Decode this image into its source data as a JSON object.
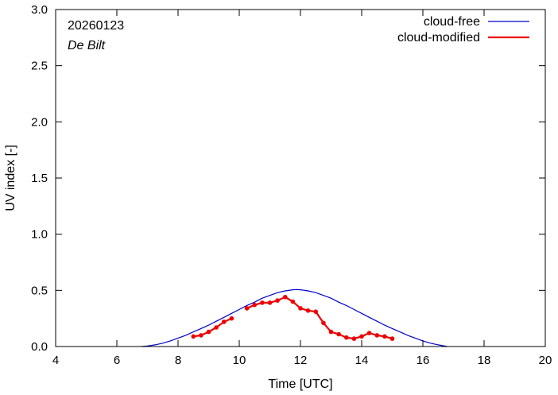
{
  "chart_data": {
    "type": "line",
    "title": "",
    "xlabel": "Time  [UTC]",
    "ylabel": "UV index  [-]",
    "xlim": [
      4,
      20
    ],
    "ylim": [
      0,
      3.0
    ],
    "x_ticks": [
      4,
      6,
      8,
      10,
      12,
      14,
      16,
      18,
      20
    ],
    "y_ticks": [
      0.0,
      0.5,
      1.0,
      1.5,
      2.0,
      2.5,
      3.0
    ],
    "x_tick_labels": [
      "4",
      "6",
      "8",
      "10",
      "12",
      "14",
      "16",
      "18",
      "20"
    ],
    "y_tick_labels": [
      "0.0",
      "0.5",
      "1.0",
      "1.5",
      "2.0",
      "2.5",
      "3.0"
    ],
    "grid": false,
    "legend_position": "top-right",
    "annotations": {
      "date": "20260123",
      "location": "De Bilt"
    },
    "series": [
      {
        "name": "cloud-free",
        "color": "#0000cc",
        "style": "line",
        "x": [
          6.8,
          7.0,
          7.25,
          7.5,
          7.75,
          8.0,
          8.25,
          8.5,
          8.75,
          9.0,
          9.25,
          9.5,
          9.75,
          10.0,
          10.25,
          10.5,
          10.75,
          11.0,
          11.25,
          11.5,
          11.75,
          11.85,
          12.0,
          12.25,
          12.5,
          12.75,
          13.0,
          13.25,
          13.5,
          13.75,
          14.0,
          14.25,
          14.5,
          14.75,
          15.0,
          15.25,
          15.5,
          15.75,
          16.0,
          16.25,
          16.5,
          16.8
        ],
        "y": [
          0.0,
          0.005,
          0.015,
          0.03,
          0.05,
          0.075,
          0.1,
          0.13,
          0.16,
          0.19,
          0.225,
          0.26,
          0.295,
          0.33,
          0.365,
          0.395,
          0.43,
          0.455,
          0.48,
          0.495,
          0.505,
          0.507,
          0.505,
          0.495,
          0.48,
          0.455,
          0.43,
          0.395,
          0.365,
          0.33,
          0.295,
          0.26,
          0.225,
          0.19,
          0.16,
          0.13,
          0.1,
          0.075,
          0.05,
          0.03,
          0.015,
          0.0
        ]
      },
      {
        "name": "cloud-modified",
        "color": "#ee0000",
        "style": "line-points",
        "segments": [
          {
            "x": [
              8.5,
              8.75,
              9.0,
              9.25,
              9.5,
              9.75
            ],
            "y": [
              0.09,
              0.1,
              0.13,
              0.17,
              0.22,
              0.25
            ]
          },
          {
            "x": [
              10.25,
              10.5,
              10.75,
              11.0,
              11.25,
              11.5,
              11.75,
              12.0,
              12.25,
              12.5,
              12.75,
              13.0,
              13.25,
              13.5,
              13.75,
              14.0,
              14.25,
              14.5,
              14.75,
              15.0
            ],
            "y": [
              0.34,
              0.37,
              0.39,
              0.39,
              0.41,
              0.44,
              0.4,
              0.34,
              0.32,
              0.31,
              0.21,
              0.13,
              0.11,
              0.08,
              0.07,
              0.09,
              0.12,
              0.1,
              0.09,
              0.07
            ]
          }
        ]
      }
    ]
  }
}
